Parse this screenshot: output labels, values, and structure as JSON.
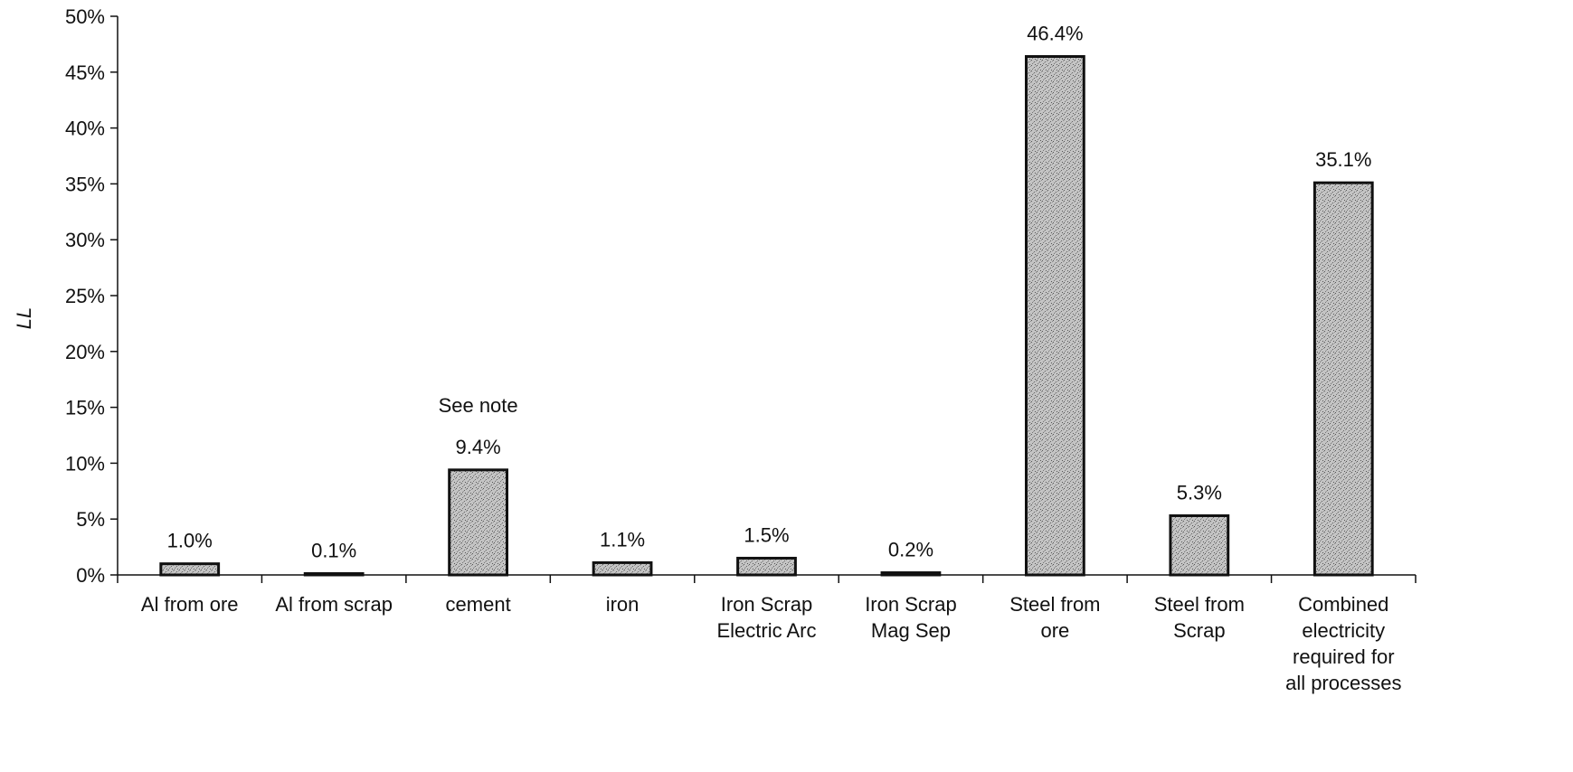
{
  "chart_data": {
    "type": "bar",
    "ylabel": "LL",
    "ylim": [
      0,
      50
    ],
    "yticks": [
      "0%",
      "5%",
      "10%",
      "15%",
      "20%",
      "25%",
      "30%",
      "35%",
      "40%",
      "45%",
      "50%"
    ],
    "categories": [
      [
        "Al from ore"
      ],
      [
        "Al from scrap"
      ],
      [
        "cement"
      ],
      [
        "iron"
      ],
      [
        "Iron Scrap",
        "Electric Arc"
      ],
      [
        "Iron Scrap",
        "Mag Sep"
      ],
      [
        "Steel  from",
        "ore"
      ],
      [
        "Steel  from",
        "Scrap"
      ],
      [
        "Combined",
        "electricity",
        "required for",
        "all processes"
      ]
    ],
    "values": [
      1.0,
      0.1,
      9.4,
      1.1,
      1.5,
      0.2,
      46.4,
      5.3,
      35.1
    ],
    "data_labels": [
      "1.0%",
      "0.1%",
      "9.4%",
      "1.1%",
      "1.5%",
      "0.2%",
      "46.4%",
      "5.3%",
      "35.1%"
    ],
    "annotations": [
      {
        "category_index": 2,
        "text": "See note"
      }
    ],
    "bar_color": "#b8b8b8",
    "bar_edge_color": "#111111",
    "grid": false,
    "legend": "none"
  }
}
